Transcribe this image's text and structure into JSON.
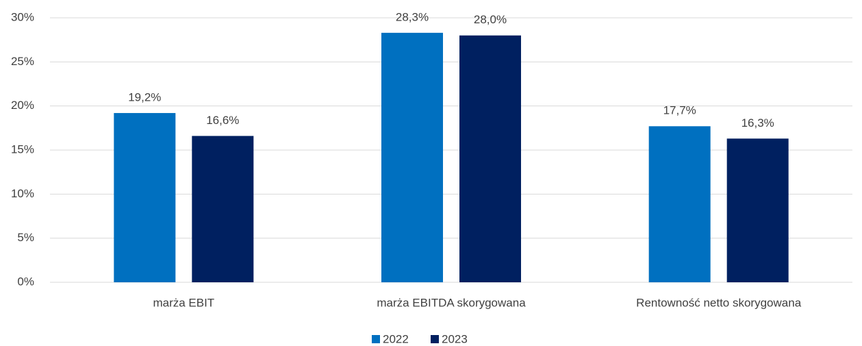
{
  "chart_data": {
    "type": "bar",
    "categories": [
      "marża EBIT",
      "marża EBITDA skorygowana",
      "Rentowność netto skorygowana"
    ],
    "series": [
      {
        "name": "2022",
        "color": "#0070c0",
        "values": [
          19.2,
          28.3,
          17.7
        ],
        "value_labels": [
          "19,2%",
          "28,3%",
          "17,7%"
        ]
      },
      {
        "name": "2023",
        "color": "#002060",
        "values": [
          16.6,
          28.0,
          16.3
        ],
        "value_labels": [
          "16,6%",
          "28,0%",
          "16,3%"
        ]
      }
    ],
    "ylim": [
      0,
      30
    ],
    "yticks": [
      {
        "value": 0,
        "label": "0%"
      },
      {
        "value": 5,
        "label": "5%"
      },
      {
        "value": 10,
        "label": "10%"
      },
      {
        "value": 15,
        "label": "15%"
      },
      {
        "value": 20,
        "label": "20%"
      },
      {
        "value": 25,
        "label": "25%"
      },
      {
        "value": 30,
        "label": "30%"
      }
    ],
    "grid": true,
    "legend": "bottom"
  }
}
